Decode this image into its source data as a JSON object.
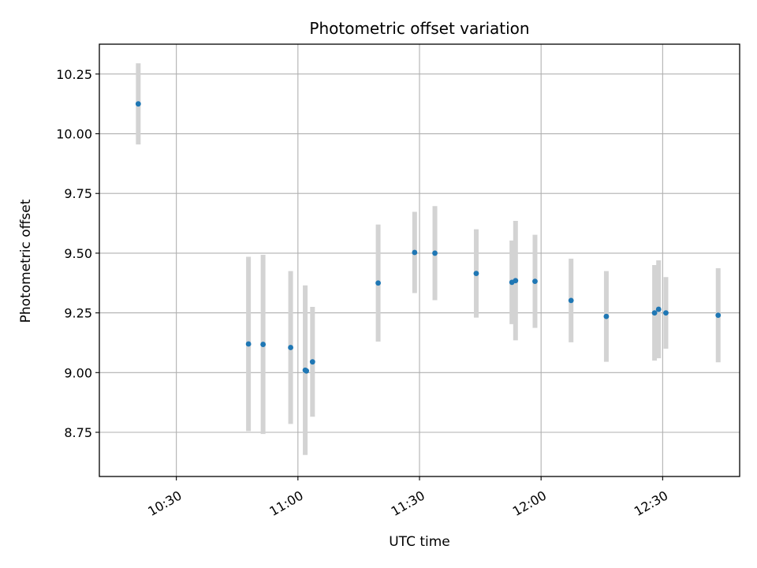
{
  "chart_data": {
    "type": "scatter",
    "title": "Photometric offset variation",
    "xlabel": "UTC time",
    "ylabel": "Photometric offset",
    "x_unit": "UTC time of day (HH:MM:SS)",
    "xlim": [
      "10:11:00",
      "12:49:00"
    ],
    "ylim": [
      8.565,
      10.375
    ],
    "x_ticks": [
      "10:30",
      "11:00",
      "11:30",
      "12:00",
      "12:30"
    ],
    "y_ticks": [
      "8.75",
      "9.00",
      "9.25",
      "9.50",
      "9.75",
      "10.00",
      "10.25"
    ],
    "grid": true,
    "colors": {
      "points": "#1f77b4",
      "errorbars": "#d3d3d3",
      "grid": "#b0b0b0"
    },
    "points": [
      {
        "x": "10:20:36",
        "y": 10.125,
        "err": 0.17
      },
      {
        "x": "10:47:48",
        "y": 9.12,
        "err": 0.365
      },
      {
        "x": "10:51:24",
        "y": 9.118,
        "err": 0.375
      },
      {
        "x": "10:58:12",
        "y": 9.105,
        "err": 0.32
      },
      {
        "x": "11:01:48",
        "y": 9.01,
        "err": 0.355
      },
      {
        "x": "11:02:06",
        "y": 9.007,
        "err": 0.0
      },
      {
        "x": "11:03:36",
        "y": 9.045,
        "err": 0.23
      },
      {
        "x": "11:19:48",
        "y": 9.375,
        "err": 0.245
      },
      {
        "x": "11:28:48",
        "y": 9.503,
        "err": 0.17
      },
      {
        "x": "11:33:48",
        "y": 9.5,
        "err": 0.197
      },
      {
        "x": "11:44:00",
        "y": 9.415,
        "err": 0.185
      },
      {
        "x": "11:52:48",
        "y": 9.378,
        "err": 0.175
      },
      {
        "x": "11:53:42",
        "y": 9.385,
        "err": 0.25
      },
      {
        "x": "11:58:30",
        "y": 9.382,
        "err": 0.195
      },
      {
        "x": "12:07:24",
        "y": 9.302,
        "err": 0.175
      },
      {
        "x": "12:16:06",
        "y": 9.235,
        "err": 0.19
      },
      {
        "x": "12:28:00",
        "y": 9.25,
        "err": 0.2
      },
      {
        "x": "12:29:00",
        "y": 9.265,
        "err": 0.205
      },
      {
        "x": "12:30:48",
        "y": 9.25,
        "err": 0.15
      },
      {
        "x": "12:43:42",
        "y": 9.24,
        "err": 0.197
      }
    ]
  }
}
